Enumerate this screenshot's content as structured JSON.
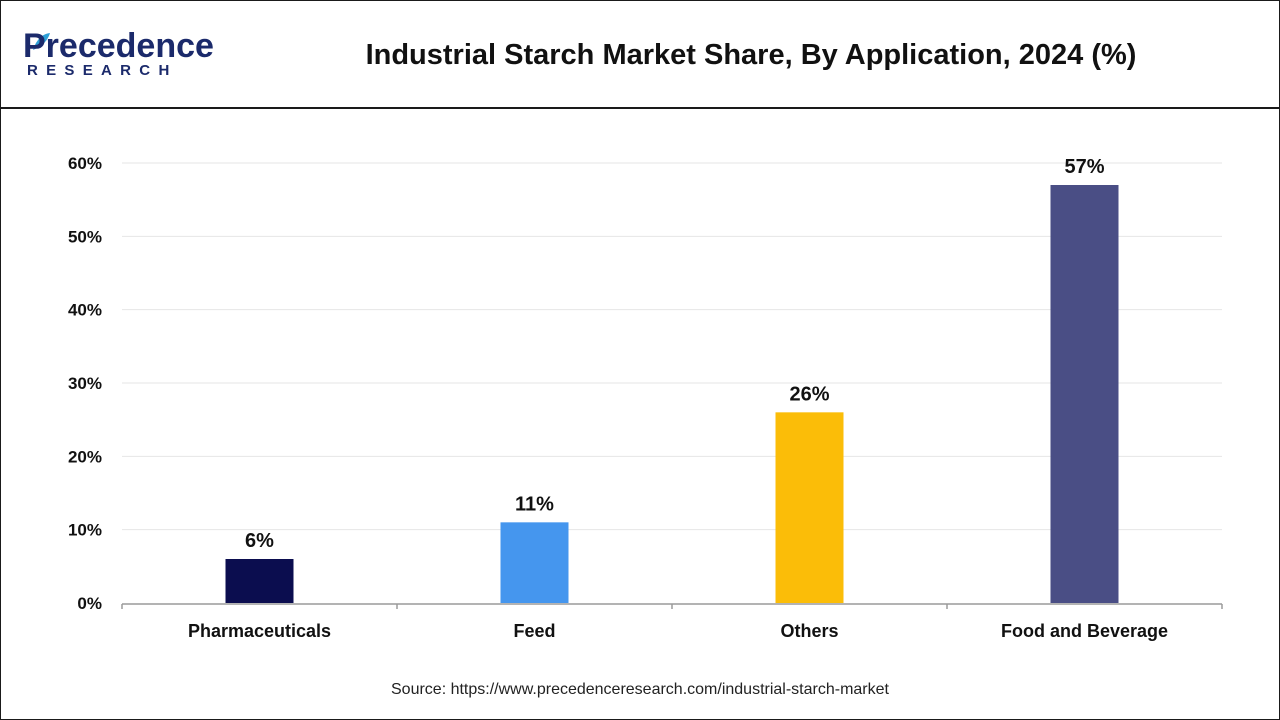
{
  "brand": {
    "logo_top": "Precedence",
    "logo_bottom": "RESEARCH",
    "color": "#1b2a6b",
    "accent": "#2e9fd6"
  },
  "title": "Industrial Starch Market Share, By Application, 2024 (%)",
  "source": "Source: https://www.precedenceresearch.com/industrial-starch-market",
  "chart_data": {
    "type": "bar",
    "title": "Industrial Starch Market Share, By Application, 2024 (%)",
    "categories": [
      "Pharmaceuticals",
      "Feed",
      "Others",
      "Food and Beverage"
    ],
    "values": [
      6,
      11,
      26,
      57
    ],
    "value_labels": [
      "6%",
      "11%",
      "26%",
      "57%"
    ],
    "colors": [
      "#0b0d4f",
      "#4596ee",
      "#fbbd08",
      "#4a4e85"
    ],
    "ylim": [
      0,
      60
    ],
    "yticks": [
      0,
      10,
      20,
      30,
      40,
      50,
      60
    ],
    "ytick_labels": [
      "0%",
      "10%",
      "20%",
      "30%",
      "40%",
      "50%",
      "60%"
    ],
    "xlabel": "",
    "ylabel": "",
    "grid": true,
    "legend": "none"
  }
}
